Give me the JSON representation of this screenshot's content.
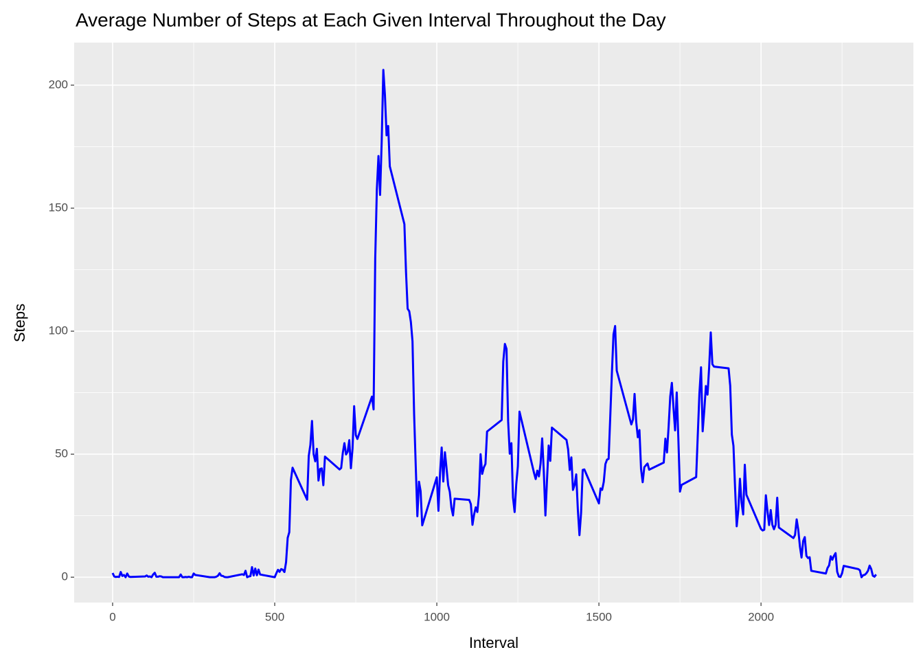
{
  "chart_data": {
    "type": "line",
    "title": "Average Number of Steps at Each Given Interval Throughout the Day",
    "x_label": "Interval",
    "y_label": "Steps",
    "xlim": [
      -118.6,
      2470
    ],
    "ylim": [
      -10.3,
      217.3
    ],
    "xticks": [
      0,
      500,
      1000,
      1500,
      2000
    ],
    "yticks": [
      0,
      50,
      100,
      150,
      200
    ],
    "x_minor_ticks": [
      250,
      750,
      1250,
      1750,
      2250
    ],
    "y_minor_ticks": [
      25,
      75,
      125,
      175
    ],
    "grid": true,
    "x": [
      0,
      5,
      10,
      15,
      20,
      25,
      30,
      35,
      40,
      45,
      50,
      55,
      100,
      105,
      110,
      115,
      120,
      125,
      130,
      135,
      140,
      145,
      150,
      155,
      200,
      205,
      210,
      215,
      220,
      225,
      230,
      235,
      240,
      245,
      250,
      255,
      300,
      305,
      310,
      315,
      320,
      325,
      330,
      335,
      340,
      345,
      350,
      355,
      400,
      405,
      410,
      415,
      420,
      425,
      430,
      435,
      440,
      445,
      450,
      455,
      500,
      505,
      510,
      515,
      520,
      525,
      530,
      535,
      540,
      545,
      550,
      555,
      600,
      605,
      610,
      615,
      620,
      625,
      630,
      635,
      640,
      645,
      650,
      655,
      700,
      705,
      710,
      715,
      720,
      725,
      730,
      735,
      740,
      745,
      750,
      755,
      800,
      805,
      810,
      815,
      820,
      825,
      830,
      835,
      840,
      845,
      850,
      855,
      900,
      905,
      910,
      915,
      920,
      925,
      930,
      935,
      940,
      945,
      950,
      955,
      1000,
      1005,
      1010,
      1015,
      1020,
      1025,
      1030,
      1035,
      1040,
      1045,
      1050,
      1055,
      1100,
      1105,
      1110,
      1115,
      1120,
      1125,
      1130,
      1135,
      1140,
      1145,
      1150,
      1155,
      1200,
      1205,
      1210,
      1215,
      1220,
      1225,
      1230,
      1235,
      1240,
      1245,
      1250,
      1255,
      1300,
      1305,
      1310,
      1315,
      1320,
      1325,
      1330,
      1335,
      1340,
      1345,
      1350,
      1355,
      1400,
      1405,
      1410,
      1415,
      1420,
      1425,
      1430,
      1435,
      1440,
      1445,
      1450,
      1455,
      1500,
      1505,
      1510,
      1515,
      1520,
      1525,
      1530,
      1535,
      1540,
      1545,
      1550,
      1555,
      1600,
      1605,
      1610,
      1615,
      1620,
      1625,
      1630,
      1635,
      1640,
      1645,
      1650,
      1655,
      1700,
      1705,
      1710,
      1715,
      1720,
      1725,
      1730,
      1735,
      1740,
      1745,
      1750,
      1755,
      1800,
      1805,
      1810,
      1815,
      1820,
      1825,
      1830,
      1835,
      1840,
      1845,
      1850,
      1855,
      1900,
      1905,
      1910,
      1915,
      1920,
      1925,
      1930,
      1935,
      1940,
      1945,
      1950,
      1955,
      2000,
      2005,
      2010,
      2015,
      2020,
      2025,
      2030,
      2035,
      2040,
      2045,
      2050,
      2055,
      2100,
      2105,
      2110,
      2115,
      2120,
      2125,
      2130,
      2135,
      2140,
      2145,
      2150,
      2155,
      2200,
      2205,
      2210,
      2215,
      2220,
      2225,
      2230,
      2235,
      2240,
      2245,
      2250,
      2255,
      2300,
      2305,
      2310,
      2315,
      2320,
      2325,
      2330,
      2335,
      2340,
      2345,
      2350,
      2355
    ],
    "series": [
      {
        "name": "Steps",
        "color": "#0000ff",
        "values": [
          1.7,
          0.3,
          0.1,
          0.2,
          0.1,
          2.1,
          0.5,
          0.9,
          0,
          1.5,
          0.3,
          0.1,
          0.3,
          0.7,
          0.2,
          0.3,
          0,
          1.1,
          1.8,
          0.2,
          0.2,
          0.4,
          0.3,
          0,
          0,
          0,
          1.1,
          0,
          0,
          0.1,
          0,
          0.2,
          0,
          0,
          1.5,
          0.9,
          0,
          0,
          0,
          0,
          0.2,
          0.6,
          1.6,
          0.6,
          0.5,
          0.1,
          0,
          0,
          1.2,
          0.9,
          2.6,
          0,
          0.3,
          0.4,
          4.1,
          0.7,
          3.5,
          0.8,
          3.1,
          1.1,
          0,
          1.6,
          3.0,
          2.2,
          3.3,
          3.0,
          2.1,
          6.1,
          16.0,
          18.3,
          39.5,
          44.5,
          31.5,
          49.3,
          53.8,
          63.5,
          50.0,
          47.1,
          52.2,
          39.3,
          44.0,
          44.2,
          37.4,
          49.0,
          43.8,
          44.4,
          50.5,
          54.5,
          49.9,
          51.0,
          55.7,
          44.3,
          52.3,
          69.5,
          57.8,
          56.2,
          73.4,
          68.2,
          129.4,
          157.5,
          171.2,
          155.4,
          177.3,
          206.2,
          195.9,
          179.6,
          183.4,
          167.0,
          143.5,
          124.0,
          109.1,
          108.1,
          103.7,
          95.9,
          66.2,
          45.2,
          24.8,
          38.8,
          35.0,
          21.1,
          40.6,
          27.0,
          42.4,
          52.7,
          38.9,
          50.8,
          44.3,
          37.4,
          34.7,
          28.3,
          25.1,
          31.9,
          31.4,
          29.7,
          21.3,
          25.5,
          28.4,
          26.5,
          33.4,
          49.98,
          42.0,
          44.6,
          46.0,
          59.2,
          63.9,
          87.7,
          94.8,
          92.8,
          63.4,
          50.2,
          54.5,
          32.4,
          26.5,
          37.7,
          45.1,
          67.3,
          42.3,
          39.9,
          43.3,
          40.98,
          46.2,
          56.4,
          42.8,
          25.1,
          39.9,
          53.5,
          47.3,
          60.8,
          55.8,
          51.96,
          43.6,
          48.7,
          35.5,
          37.5,
          41.8,
          27.5,
          17.1,
          26.1,
          43.6,
          43.8,
          30.0,
          36.1,
          35.5,
          38.8,
          45.96,
          47.8,
          48.1,
          65.3,
          82.9,
          98.7,
          102.1,
          83.96,
          62.1,
          64.1,
          74.5,
          63.2,
          56.9,
          59.8,
          43.9,
          38.6,
          44.7,
          45.5,
          46.2,
          43.7,
          46.6,
          56.3,
          50.7,
          61.2,
          73.4,
          79.0,
          68.9,
          59.7,
          75.1,
          56.5,
          34.8,
          37.5,
          40.7,
          58.0,
          74.7,
          85.3,
          59.3,
          67.8,
          77.7,
          74.2,
          85.3,
          99.5,
          86.6,
          85.6,
          84.9,
          77.8,
          58.0,
          53.4,
          36.3,
          20.7,
          27.4,
          40.0,
          30.2,
          25.5,
          45.7,
          33.5,
          19.6,
          19.0,
          19.3,
          33.3,
          26.8,
          21.2,
          27.3,
          21.3,
          19.5,
          21.3,
          32.3,
          20.2,
          15.9,
          17.2,
          23.5,
          19.2,
          12.5,
          8.0,
          14.7,
          16.3,
          8.7,
          7.8,
          8.1,
          2.6,
          1.5,
          3.7,
          4.8,
          8.5,
          7.1,
          8.7,
          9.8,
          2.2,
          0.3,
          0.1,
          1.6,
          4.6,
          3.3,
          2.8,
          0,
          0.8,
          0.96,
          1.6,
          2.6,
          4.7,
          3.3,
          0.6,
          0.2,
          1.1
        ]
      }
    ]
  }
}
